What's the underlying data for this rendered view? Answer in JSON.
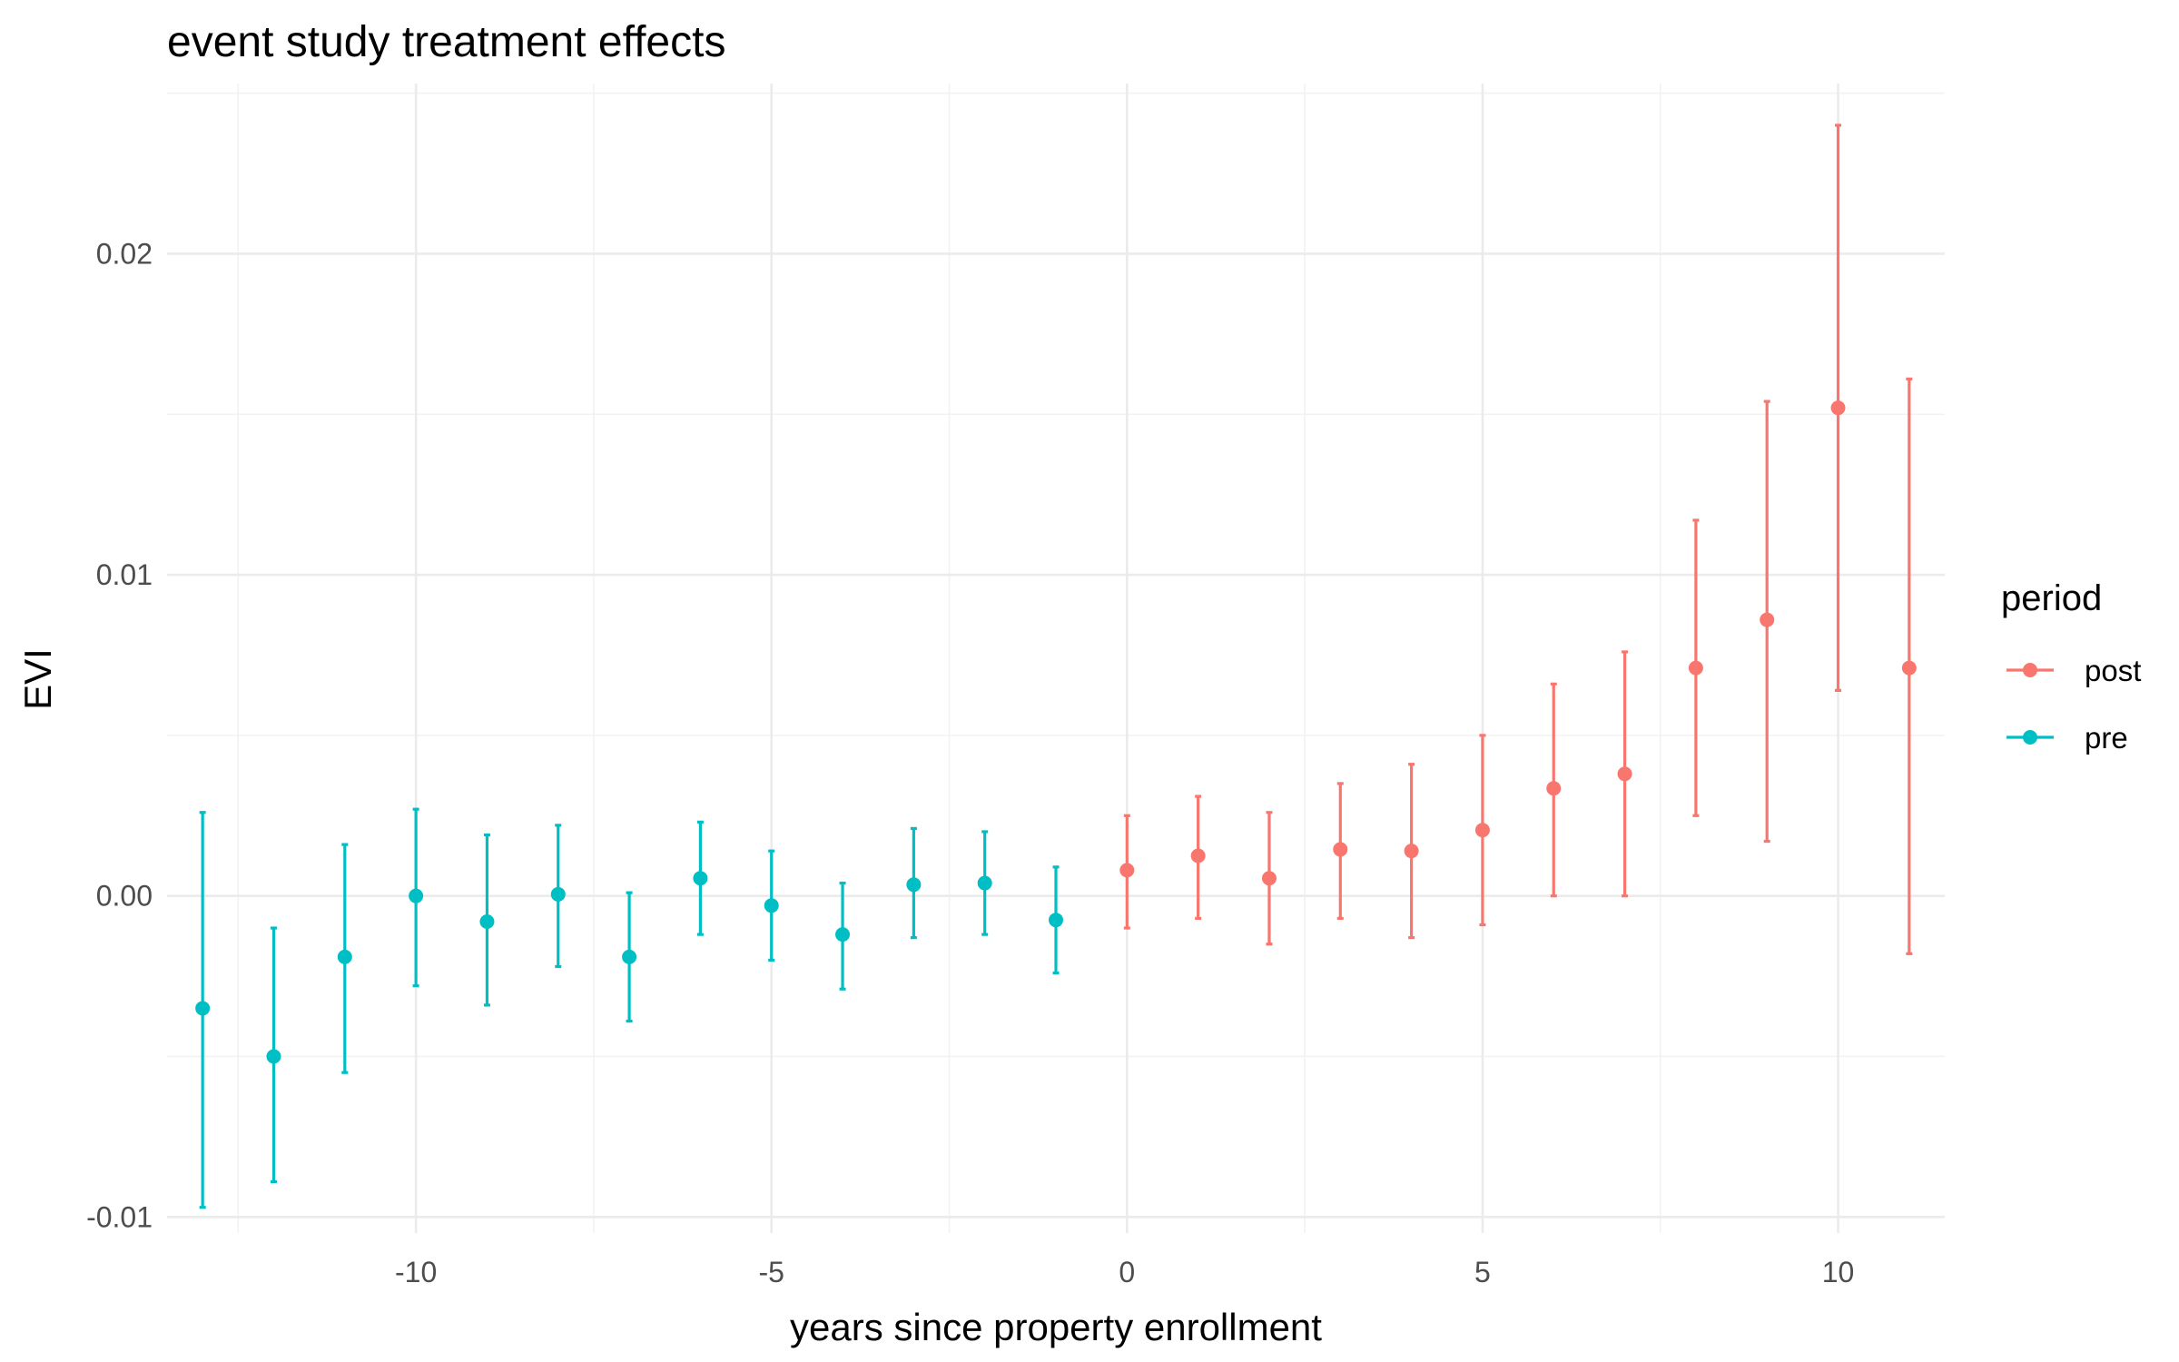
{
  "chart_data": {
    "type": "scatter",
    "title": "event study treatment effects",
    "xlabel": "years since property enrollment",
    "ylabel": "EVI",
    "xlim": [
      -13.5,
      11.5
    ],
    "ylim": [
      -0.0105,
      0.0253
    ],
    "x_ticks": [
      -10,
      -5,
      0,
      5,
      10
    ],
    "x_tick_labels": [
      "-10",
      "-5",
      "0",
      "5",
      "10"
    ],
    "y_ticks": [
      -0.01,
      0.0,
      0.01,
      0.02
    ],
    "y_tick_labels": [
      "-0.01",
      "0.00",
      "0.01",
      "0.02"
    ],
    "grid": true,
    "error_bars": true,
    "legend": {
      "title": "period",
      "placement": "right",
      "entries": [
        "post",
        "pre"
      ]
    },
    "series": [
      {
        "name": "post",
        "color": "#F8766D",
        "points": [
          {
            "x": 0,
            "y": 0.0008,
            "lo": -0.001,
            "hi": 0.0025
          },
          {
            "x": 1,
            "y": 0.00125,
            "lo": -0.0007,
            "hi": 0.0031
          },
          {
            "x": 2,
            "y": 0.00055,
            "lo": -0.0015,
            "hi": 0.0026
          },
          {
            "x": 3,
            "y": 0.00145,
            "lo": -0.0007,
            "hi": 0.0035
          },
          {
            "x": 4,
            "y": 0.0014,
            "lo": -0.0013,
            "hi": 0.0041
          },
          {
            "x": 5,
            "y": 0.00205,
            "lo": -0.0009,
            "hi": 0.005
          },
          {
            "x": 6,
            "y": 0.00335,
            "lo": 0.0,
            "hi": 0.0066
          },
          {
            "x": 7,
            "y": 0.0038,
            "lo": 0.0,
            "hi": 0.0076
          },
          {
            "x": 8,
            "y": 0.0071,
            "lo": 0.0025,
            "hi": 0.0117
          },
          {
            "x": 9,
            "y": 0.0086,
            "lo": 0.0017,
            "hi": 0.0154
          },
          {
            "x": 10,
            "y": 0.0152,
            "lo": 0.0064,
            "hi": 0.024
          },
          {
            "x": 11,
            "y": 0.0071,
            "lo": -0.0018,
            "hi": 0.0161
          }
        ]
      },
      {
        "name": "pre",
        "color": "#00BFC4",
        "points": [
          {
            "x": -13,
            "y": -0.0035,
            "lo": -0.0097,
            "hi": 0.0026
          },
          {
            "x": -12,
            "y": -0.005,
            "lo": -0.0089,
            "hi": -0.001
          },
          {
            "x": -11,
            "y": -0.0019,
            "lo": -0.0055,
            "hi": 0.0016
          },
          {
            "x": -10,
            "y": 0.0,
            "lo": -0.0028,
            "hi": 0.0027
          },
          {
            "x": -9,
            "y": -0.0008,
            "lo": -0.0034,
            "hi": 0.0019
          },
          {
            "x": -8,
            "y": 5e-05,
            "lo": -0.0022,
            "hi": 0.0022
          },
          {
            "x": -7,
            "y": -0.0019,
            "lo": -0.0039,
            "hi": 0.0001
          },
          {
            "x": -6,
            "y": 0.00055,
            "lo": -0.0012,
            "hi": 0.0023
          },
          {
            "x": -5,
            "y": -0.0003,
            "lo": -0.002,
            "hi": 0.0014
          },
          {
            "x": -4,
            "y": -0.0012,
            "lo": -0.0029,
            "hi": 0.0004
          },
          {
            "x": -3,
            "y": 0.00035,
            "lo": -0.0013,
            "hi": 0.0021
          },
          {
            "x": -2,
            "y": 0.0004,
            "lo": -0.0012,
            "hi": 0.002
          },
          {
            "x": -1,
            "y": -0.00075,
            "lo": -0.0024,
            "hi": 0.0009
          }
        ]
      }
    ]
  }
}
